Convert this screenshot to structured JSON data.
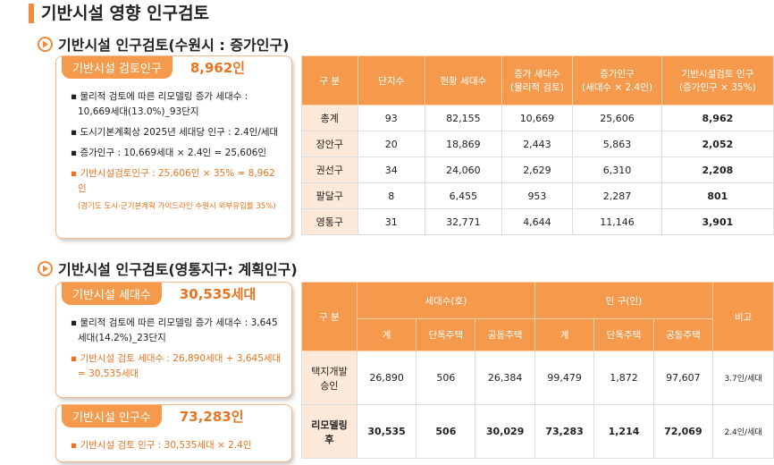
{
  "title": "기반시설 영향 인구검토",
  "section1": {
    "heading": "기반시설 인구검토(수원시 : 증가인구)",
    "box": {
      "label": "기반시설 검토인구",
      "value": "8,962인",
      "bullets": [
        "물리적 검토에 따른 리모델링 증가 세대수 : 10,669세대(13.0%)_93단지",
        "도시기본계획상 2025년 세대당 인구 : 2.4인/세대",
        "증가인구 : 10,669세대 × 2.4인 = 25,606인"
      ],
      "highlight": "기반시설검토인구 : 25,606인 × 35% = 8,962인",
      "note": "(경기도 도시·군기본계획 가이드라인 수원시 외부유입률 35%)"
    },
    "table": {
      "header": [
        [
          "구 분"
        ],
        [
          "단지수"
        ],
        [
          "현황 세대수"
        ],
        [
          "증가 세대수",
          "(물리적 검토)"
        ],
        [
          "증가인구",
          "(세대수 × 2.4인)"
        ],
        [
          "기반시설검토 인구",
          "(증가인구 × 35%)"
        ]
      ],
      "rows": [
        [
          "총계",
          "93",
          "82,155",
          "10,669",
          "25,606",
          "8,962"
        ],
        [
          "장안구",
          "20",
          "18,869",
          "2,443",
          "5,863",
          "2,052"
        ],
        [
          "권선구",
          "34",
          "24,060",
          "2,629",
          "6,310",
          "2,208"
        ],
        [
          "팔달구",
          "8",
          "6,455",
          "953",
          "2,287",
          "801"
        ],
        [
          "영통구",
          "31",
          "32,771",
          "4,644",
          "11,146",
          "3,901"
        ]
      ]
    }
  },
  "section2": {
    "heading": "기반시설 인구검토(영통지구: 계획인구)",
    "box1": {
      "label": "기반시설 세대수",
      "value": "30,535세대",
      "bullets": [
        "물리적 검토에 따른 리모델링 증가 세대수 : 3,645세대(14.2%)_23단지"
      ],
      "highlight": "기반시설 검토 세대수 : 26,890세대 + 3,645세대 = 30,535세대"
    },
    "box2": {
      "label": "기반시설 인구수",
      "value": "73,283인",
      "highlight": "기반시설 검토 인구 : 30,535세대 × 2.4인"
    },
    "table": {
      "corner": "구 분",
      "groups": [
        "세대수(호)",
        "인 구(인)"
      ],
      "remark": "비고",
      "subheader": [
        "계",
        "단독주택",
        "공동주택",
        "계",
        "단독주택",
        "공동주택"
      ],
      "rows": [
        {
          "label": [
            "택지개발",
            "승인"
          ],
          "cells": [
            "26,890",
            "506",
            "26,384",
            "99,479",
            "1,872",
            "97,607",
            "3.7인/세대"
          ]
        },
        {
          "label": [
            "리모델링",
            "후"
          ],
          "cells": [
            "30,535",
            "506",
            "30,029",
            "73,283",
            "1,214",
            "72,069",
            "2.4인/세대"
          ]
        }
      ]
    }
  }
}
